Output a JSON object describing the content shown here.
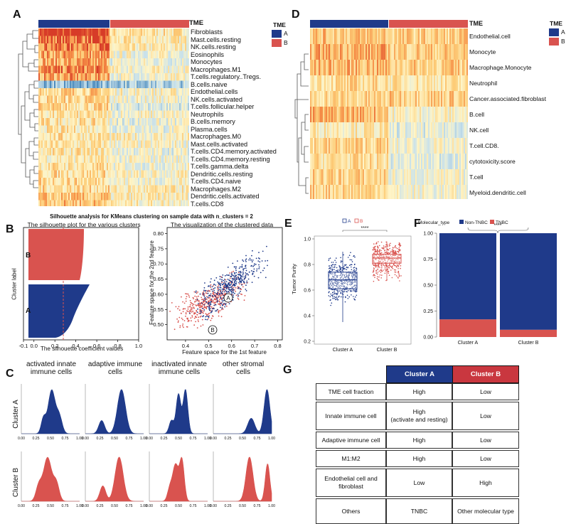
{
  "panels": {
    "A": {
      "label": "A",
      "annotation_title": "TME",
      "groups": [
        "A",
        "B"
      ],
      "legend_title": "TME",
      "colors": {
        "A": "#1f3a8a",
        "B": "#d9534f"
      },
      "rows": [
        "Fibroblasts",
        "Mast.cells.resting",
        "NK.cells.resting",
        "Eosinophils",
        "Monocytes",
        "Macrophages.M1",
        "T.cells.regulatory..Tregs.",
        "B.cells.naive",
        "Endothelial.cells",
        "NK.cells.activated",
        "T.cells.follicular.helper",
        "Neutrophils",
        "B.cells.memory",
        "Plasma.cells",
        "Macrophages.M0",
        "Mast.cells.activated",
        "T.cells.CD4.memory.activated",
        "T.cells.CD4.memory.resting",
        "T.cells.gamma.delta",
        "Dendritic.cells.resting",
        "T.cells.CD4.naive",
        "Macrophages.M2",
        "Dendritic.cells.activated",
        "T.cells.CD8"
      ]
    },
    "D": {
      "label": "D",
      "annotation_title": "TME",
      "legend_title": "TME",
      "groups": [
        "A",
        "B"
      ],
      "rows": [
        "Endothelial.cell",
        "Monocyte",
        "Macrophage.Monocyte",
        "Neutrophil",
        "Cancer.associated.fibroblast",
        "B.cell",
        "NK.cell",
        "T.cell.CD8.",
        "cytotoxicity.score",
        "T.cell",
        "Myeloid.dendritic.cell"
      ]
    },
    "B": {
      "label": "B",
      "suptitle": "Silhouette analysis for KMeans clustering on sample data with n_clusters = 2",
      "left_title": "The silhouette plot for the various clusters",
      "left_xlabel": "The silhouette coefficient values",
      "left_ylabel": "Cluster label",
      "cluster_labels": [
        "B",
        "A"
      ],
      "left_xticks": [
        "-0.1",
        "0.0",
        "0.2",
        "0.4",
        "0.6",
        "0.8",
        "1.0"
      ],
      "right_title": "The visualization of the clustered data",
      "right_xlabel": "Feature space for the 1st feature",
      "right_ylabel": "Feature space for the 2nd feature",
      "right_xticks": [
        "0.4",
        "0.5",
        "0.6",
        "0.7",
        "0.8"
      ],
      "right_yticks": [
        "0.50",
        "0.55",
        "0.60",
        "0.65",
        "0.70",
        "0.75",
        "0.80"
      ],
      "centroid_labels": [
        "A",
        "B"
      ]
    },
    "E": {
      "label": "E",
      "legend": [
        "A",
        "B"
      ],
      "ylabel": "Tumor Purity",
      "yticks": [
        "0.2",
        "0.4",
        "0.6",
        "0.8",
        "1.0"
      ],
      "categories": [
        "Cluster A",
        "Cluster B"
      ],
      "signif": "****"
    },
    "F": {
      "label": "F",
      "legend_title": "Molecular_type",
      "legend": [
        "Non-TNBC",
        "TNBC"
      ],
      "yticks": [
        "0.00",
        "0.25",
        "0.50",
        "0.75",
        "1.00"
      ],
      "categories": [
        "Cluster A",
        "Cluster B"
      ],
      "signif": "****"
    },
    "C": {
      "label": "C",
      "col_titles": [
        [
          "activated innate",
          "immune cells"
        ],
        [
          "adaptive immune",
          "cells"
        ],
        [
          "inactivated innate",
          "immune cells"
        ],
        [
          "other stromal",
          "cells"
        ]
      ],
      "row_labels": [
        "Cluster A",
        "Cluster B"
      ],
      "xticks": [
        "0.00",
        "0.25",
        "0.50",
        "0.75",
        "1.00"
      ]
    },
    "G": {
      "label": "G",
      "headers": [
        "Cluster A",
        "Cluster B"
      ],
      "rows": [
        {
          "name": "TME cell fraction",
          "a": "High",
          "b": "Low"
        },
        {
          "name": "Innate immune cell",
          "a": "High",
          "a2": "(activate and resting)",
          "b": "Low"
        },
        {
          "name": "Adaptive immune cell",
          "a": "High",
          "b": "Low"
        },
        {
          "name": "M1:M2",
          "a": "High",
          "b": "Low"
        },
        {
          "name": "Endothelial cell and",
          "name2": "fibroblast",
          "a": "Low",
          "b": "High"
        },
        {
          "name": "Others",
          "a": "TNBC",
          "b": "Other molecular type"
        }
      ]
    }
  },
  "chart_data": [
    {
      "type": "bar",
      "panel": "F",
      "categories": [
        "Cluster A",
        "Cluster B"
      ],
      "series": [
        {
          "name": "Non-TNBC",
          "values": [
            0.83,
            0.93
          ]
        },
        {
          "name": "TNBC",
          "values": [
            0.17,
            0.07
          ]
        }
      ],
      "ylim": [
        0,
        1
      ]
    },
    {
      "type": "scatter",
      "panel": "E",
      "categories": [
        "Cluster A",
        "Cluster B"
      ],
      "ylabel": "Tumor Purity",
      "ylim": [
        0.2,
        1.0
      ],
      "series": [
        {
          "name": "A",
          "median": 0.68,
          "q1": 0.61,
          "q3": 0.74
        },
        {
          "name": "B",
          "median": 0.85,
          "q1": 0.81,
          "q3": 0.88
        }
      ]
    }
  ]
}
